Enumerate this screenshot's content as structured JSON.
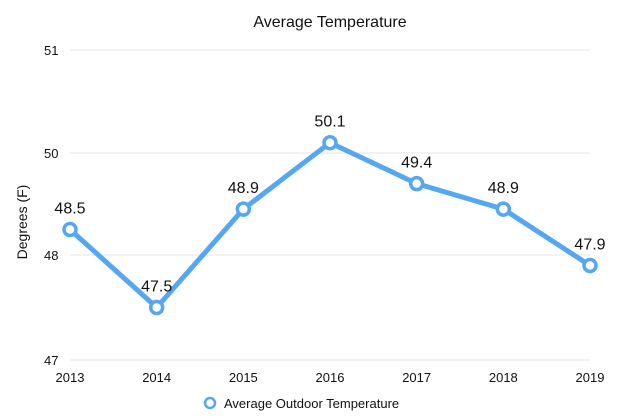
{
  "chart_data": {
    "type": "line",
    "title": "Average Temperature",
    "xlabel": "",
    "ylabel": "Degrees (F)",
    "categories": [
      "2013",
      "2014",
      "2015",
      "2016",
      "2017",
      "2018",
      "2019"
    ],
    "yticks": [
      "47",
      "48",
      "50",
      "51"
    ],
    "series": [
      {
        "name": "Average Outdoor Temperature",
        "values": [
          48.5,
          47.5,
          48.9,
          50.1,
          49.4,
          48.9,
          47.9
        ],
        "labels": [
          "48.5",
          "47.5",
          "48.9",
          "50.1",
          "49.4",
          "48.9",
          "47.9"
        ],
        "color": "#55a7f2"
      }
    ],
    "grid": true,
    "legend": "bottom"
  }
}
